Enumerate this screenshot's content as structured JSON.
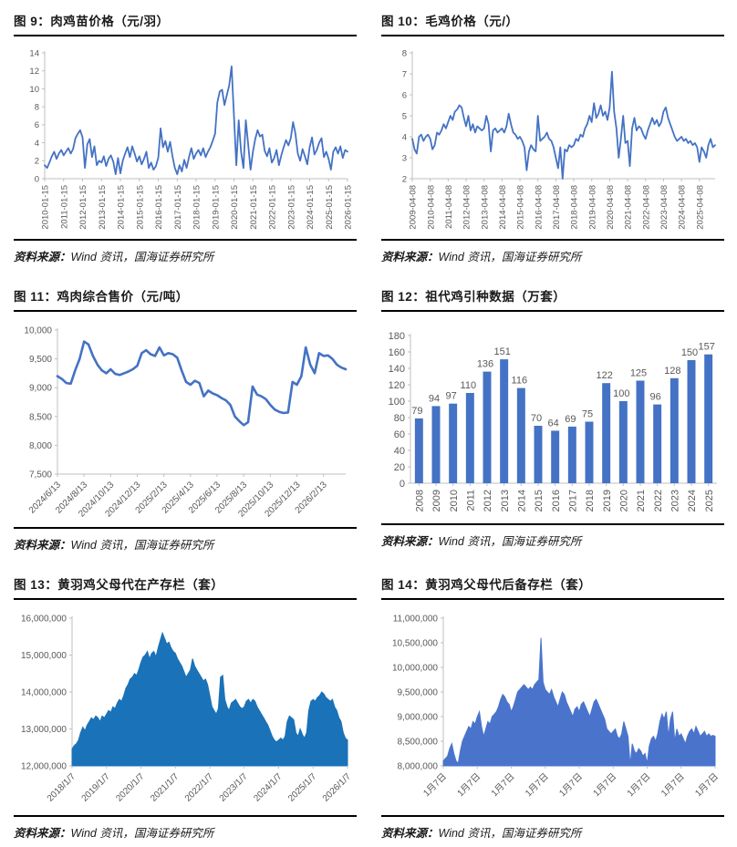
{
  "figures": [
    {
      "num_title": "图 9：肉鸡苗价格（元/羽）",
      "source_label": "资料来源：",
      "source_text": "Wind 资讯，国海证券研究所"
    },
    {
      "num_title": "图 10：毛鸡价格（元/）",
      "source_label": "资料来源：",
      "source_text": "Wind 资讯，国海证券研究所"
    },
    {
      "num_title": "图 11：鸡肉综合售价（元/吨）",
      "source_label": "资料来源：",
      "source_text": "Wind 资讯，国海证券研究所"
    },
    {
      "num_title": "图 12：祖代鸡引种数据（万套）",
      "source_label": "资料来源：",
      "source_text": "Wind 资讯，国海证券研究所"
    },
    {
      "num_title": "图 13：黄羽鸡父母代在产存栏（套）",
      "source_label": "资料来源：",
      "source_text": "Wind 资讯，国海证券研究所"
    },
    {
      "num_title": "图 14：黄羽鸡父母代后备存栏（套）",
      "source_label": "资料来源：",
      "source_text": "Wind 资讯，国海证券研究所"
    }
  ],
  "chart_data": [
    {
      "type": "line",
      "title": "肉鸡苗价格（元/羽）",
      "xlabel": "",
      "ylabel": "",
      "color": "#4472c4",
      "ylim": [
        0,
        14
      ],
      "ystep": 2,
      "comma": false,
      "grid": false,
      "legend": "none",
      "label_rotation": -90,
      "x_labels": [
        "2010-01-15",
        "2011-01-15",
        "2012-01-15",
        "2013-01-15",
        "2014-01-15",
        "2015-01-15",
        "2016-01-15",
        "2017-01-15",
        "2018-01-15",
        "2019-01-15",
        "2020-01-15",
        "2021-01-15",
        "2022-01-15",
        "2023-01-15",
        "2024-01-15",
        "2025-01-15",
        "2026-01-15"
      ],
      "x_label_every": 8,
      "values": [
        1.5,
        1.2,
        1.8,
        2.5,
        3.0,
        2.2,
        2.8,
        3.2,
        2.6,
        3.0,
        3.4,
        2.8,
        3.3,
        4.5,
        5.0,
        5.4,
        4.6,
        1.2,
        3.8,
        4.4,
        2.4,
        3.6,
        1.5,
        2.0,
        1.8,
        2.5,
        1.4,
        2.2,
        2.6,
        1.9,
        0.5,
        2.3,
        0.6,
        2.0,
        2.8,
        3.5,
        2.4,
        3.6,
        2.8,
        1.9,
        2.5,
        1.6,
        2.2,
        3.0,
        1.2,
        1.8,
        1.0,
        1.4,
        2.3,
        5.6,
        3.5,
        4.2,
        3.0,
        4.1,
        2.5,
        1.2,
        0.5,
        1.5,
        0.8,
        2.1,
        1.2,
        2.4,
        3.4,
        2.2,
        2.8,
        3.2,
        2.6,
        3.4,
        2.4,
        3.0,
        3.5,
        4.2,
        5.0,
        8.5,
        9.7,
        9.9,
        8.2,
        9.3,
        10.4,
        12.5,
        7.0,
        1.5,
        6.5,
        3.0,
        1.2,
        6.5,
        3.8,
        1.0,
        3.0,
        4.4,
        5.4,
        4.7,
        4.9,
        3.1,
        2.5,
        3.4,
        1.8,
        2.3,
        3.2,
        1.5,
        2.6,
        3.5,
        4.3,
        3.7,
        4.5,
        6.3,
        5.0,
        2.8,
        2.0,
        3.3,
        2.5,
        1.6,
        3.5,
        4.6,
        2.7,
        3.2,
        4.0,
        4.5,
        2.4,
        3.0,
        2.2,
        1.0,
        3.0,
        3.5,
        2.8,
        3.6,
        2.3,
        3.2,
        3.0
      ]
    },
    {
      "type": "line",
      "title": "毛鸡价格（元/）",
      "xlabel": "",
      "ylabel": "",
      "color": "#4472c4",
      "ylim": [
        2,
        8
      ],
      "ystep": 1,
      "comma": false,
      "grid": false,
      "legend": "none",
      "label_rotation": -90,
      "x_labels": [
        "2009-04-08",
        "2010-04-08",
        "2011-04-08",
        "2012-04-08",
        "2013-04-08",
        "2014-04-08",
        "2015-04-08",
        "2016-04-08",
        "2017-04-08",
        "2018-04-08",
        "2019-04-08",
        "2020-04-08",
        "2021-04-08",
        "2022-04-08",
        "2023-04-08",
        "2024-04-08",
        "2025-04-08"
      ],
      "x_label_every": 8,
      "values": [
        3.9,
        3.4,
        3.2,
        4.0,
        4.1,
        3.8,
        4.0,
        4.1,
        3.9,
        3.4,
        3.6,
        4.2,
        4.1,
        4.3,
        4.6,
        4.4,
        4.7,
        5.0,
        4.8,
        5.2,
        5.3,
        5.5,
        5.4,
        4.9,
        4.5,
        5.0,
        4.3,
        4.6,
        4.2,
        4.5,
        4.4,
        4.3,
        4.4,
        5.0,
        4.6,
        3.3,
        4.3,
        4.4,
        4.2,
        4.3,
        4.4,
        4.2,
        4.5,
        5.1,
        4.6,
        4.2,
        4.1,
        3.9,
        4.0,
        3.8,
        3.5,
        2.4,
        3.3,
        3.6,
        3.4,
        3.3,
        5.0,
        3.8,
        3.9,
        4.0,
        4.2,
        3.9,
        3.8,
        3.5,
        3.0,
        2.5,
        3.5,
        2.0,
        3.4,
        3.3,
        3.6,
        3.5,
        3.6,
        3.9,
        3.8,
        4.1,
        4.0,
        4.4,
        4.6,
        5.0,
        4.7,
        5.6,
        4.9,
        5.1,
        5.5,
        5.0,
        5.2,
        4.8,
        5.4,
        7.1,
        5.2,
        4.4,
        3.0,
        3.9,
        5.0,
        3.7,
        3.8,
        2.6,
        4.4,
        4.9,
        4.3,
        4.5,
        4.4,
        4.1,
        3.9,
        4.3,
        4.6,
        4.9,
        4.6,
        4.8,
        4.5,
        4.7,
        5.2,
        5.4,
        4.9,
        4.6,
        4.3,
        4.0,
        3.8,
        3.9,
        4.0,
        3.8,
        3.9,
        3.7,
        3.8,
        3.6,
        3.7,
        3.5,
        2.8,
        3.5,
        3.3,
        3.0,
        3.6,
        3.9,
        3.5,
        3.6
      ]
    },
    {
      "type": "line",
      "title": "鸡肉综合售价（元/吨）",
      "xlabel": "",
      "ylabel": "",
      "color": "#4472c4",
      "ylim": [
        7500,
        10000
      ],
      "ystep": 500,
      "comma": true,
      "grid": false,
      "legend": "none",
      "label_rotation": -45,
      "x_labels": [
        "2024/6/13",
        "2024/8/13",
        "2024/10/13",
        "2024/12/13",
        "2025/2/13",
        "2025/4/13",
        "2025/6/13",
        "2025/8/13",
        "2025/10/13",
        "2025/12/13",
        "2026/2/13"
      ],
      "x_label_every": 6,
      "values": [
        9200,
        9150,
        9080,
        9070,
        9300,
        9500,
        9800,
        9750,
        9550,
        9400,
        9300,
        9250,
        9320,
        9240,
        9220,
        9250,
        9280,
        9320,
        9380,
        9600,
        9650,
        9580,
        9550,
        9700,
        9560,
        9600,
        9580,
        9520,
        9300,
        9100,
        9050,
        9120,
        9080,
        8850,
        8950,
        8900,
        8870,
        8820,
        8780,
        8700,
        8500,
        8420,
        8350,
        8400,
        9020,
        8880,
        8850,
        8800,
        8700,
        8620,
        8580,
        8560,
        8570,
        9100,
        9050,
        9200,
        9700,
        9400,
        9250,
        9600,
        9550,
        9560,
        9500,
        9400,
        9350,
        9320
      ]
    },
    {
      "type": "bar",
      "title": "祖代鸡引种数据（万套）",
      "xlabel": "",
      "ylabel": "",
      "color": "#4472c4",
      "ylim": [
        0,
        180
      ],
      "ystep": 20,
      "comma": false,
      "grid": false,
      "legend": "none",
      "data_labels": true,
      "label_rotation": -90,
      "categories": [
        "2008",
        "2009",
        "2010",
        "2011",
        "2012",
        "2013",
        "2014",
        "2015",
        "2016",
        "2017",
        "2018",
        "2019",
        "2020",
        "2021",
        "2022",
        "2023",
        "2024",
        "2025"
      ],
      "values": [
        79,
        94,
        97,
        110,
        136,
        151,
        116,
        70,
        64,
        69,
        75,
        122,
        100,
        125,
        96,
        128,
        150,
        157
      ]
    },
    {
      "type": "area",
      "title": "黄羽鸡父母代在产存栏（套）",
      "xlabel": "",
      "ylabel": "",
      "color": "#1a72b8",
      "ylim": [
        12000000,
        16000000
      ],
      "ystep": 1000000,
      "comma": true,
      "grid": false,
      "legend": "none",
      "label_rotation": -45,
      "x_labels": [
        "2018/1/7",
        "2019/1/7",
        "2020/1/7",
        "2021/1/7",
        "2022/1/7",
        "2023/1/7",
        "2024/1/7",
        "2025/1/7",
        "2026/1/7"
      ],
      "x_label_every": 16,
      "values": [
        12450000,
        12550000,
        12600000,
        12700000,
        12900000,
        13050000,
        12950000,
        13100000,
        13200000,
        13300000,
        13250000,
        13350000,
        13300000,
        13200000,
        13350000,
        13300000,
        13400000,
        13500000,
        13450000,
        13600000,
        13550000,
        13700000,
        13800000,
        13750000,
        13900000,
        14100000,
        14200000,
        14350000,
        14400000,
        14500000,
        14450000,
        14600000,
        14800000,
        14950000,
        15000000,
        15100000,
        14900000,
        15050000,
        15100000,
        14950000,
        15200000,
        15400000,
        15600000,
        15450000,
        15300000,
        15350000,
        15200000,
        15100000,
        15050000,
        14900000,
        14800000,
        14700000,
        14550000,
        14400000,
        14500000,
        14600000,
        14900000,
        14700000,
        14600000,
        14500000,
        14400000,
        14300000,
        14350000,
        14200000,
        13900000,
        13600000,
        13500000,
        13400000,
        13550000,
        14400000,
        14450000,
        13800000,
        13600000,
        13500000,
        13700000,
        13750000,
        13800000,
        13700000,
        13600000,
        13550000,
        13600000,
        13750000,
        13800000,
        13700000,
        13800000,
        13750000,
        13600000,
        13500000,
        13400000,
        13300000,
        13200000,
        13100000,
        12950000,
        12800000,
        12700000,
        12650000,
        12700000,
        12750000,
        12700000,
        12800000,
        13200000,
        13350000,
        13300000,
        13250000,
        12900000,
        12800000,
        13000000,
        12850000,
        12750000,
        12900000,
        13500000,
        13750000,
        13800000,
        13750000,
        13850000,
        13900000,
        14000000,
        13950000,
        13850000,
        13800000,
        13750000,
        13800000,
        13600000,
        13500000,
        13300000,
        13200000,
        12900000,
        12750000,
        12700000
      ]
    },
    {
      "type": "area",
      "title": "黄羽鸡父母代后备存栏（套）",
      "xlabel": "",
      "ylabel": "",
      "color": "#4a74cc",
      "ylim": [
        8000000,
        11000000
      ],
      "ystep": 500000,
      "comma": true,
      "grid": false,
      "legend": "none",
      "label_rotation": -45,
      "x_labels": [
        "1月7日",
        "1月7日",
        "1月7日",
        "1月7日",
        "1月7日",
        "1月7日",
        "1月7日",
        "1月7日",
        "1月7日"
      ],
      "x_label_every": 16,
      "values": [
        8100000,
        8150000,
        8200000,
        8350000,
        8450000,
        8250000,
        8100000,
        8050000,
        8300000,
        8500000,
        8600000,
        8700000,
        8800000,
        8750000,
        8900000,
        8850000,
        9000000,
        9100000,
        8800000,
        8600000,
        8750000,
        8900000,
        8850000,
        9000000,
        9050000,
        9100000,
        9200000,
        9350000,
        9450000,
        9400000,
        9300000,
        9250000,
        9100000,
        9200000,
        9350000,
        9500000,
        9550000,
        9600000,
        9650000,
        9600000,
        9550000,
        9600000,
        9550000,
        9650000,
        9700000,
        9750000,
        10600000,
        9700000,
        9550000,
        9500000,
        9450000,
        9550000,
        9400000,
        9300000,
        9200000,
        9350000,
        9500000,
        9450000,
        9300000,
        9200000,
        9100000,
        9000000,
        9150000,
        9200000,
        9100000,
        9250000,
        9300000,
        9200000,
        9100000,
        9000000,
        9150000,
        9300000,
        9350000,
        9250000,
        9150000,
        9050000,
        8950000,
        8750000,
        8700000,
        8650000,
        8700000,
        8750000,
        8600000,
        8550000,
        8650000,
        8900000,
        8750000,
        8600000,
        8020000,
        8450000,
        8300000,
        8250000,
        8350000,
        8300000,
        8200000,
        8250000,
        8050000,
        8400000,
        8550000,
        8600000,
        8500000,
        8650000,
        8900000,
        9050000,
        8950000,
        9100000,
        8600000,
        8950000,
        9100000,
        8500000,
        8750000,
        8600000,
        8650000,
        8550000,
        8450000,
        8600000,
        8700000,
        8750000,
        8650000,
        8800000,
        8700000,
        8600000,
        8650000,
        8700000,
        8600000,
        8650000,
        8600000,
        8620000,
        8600000
      ]
    }
  ]
}
